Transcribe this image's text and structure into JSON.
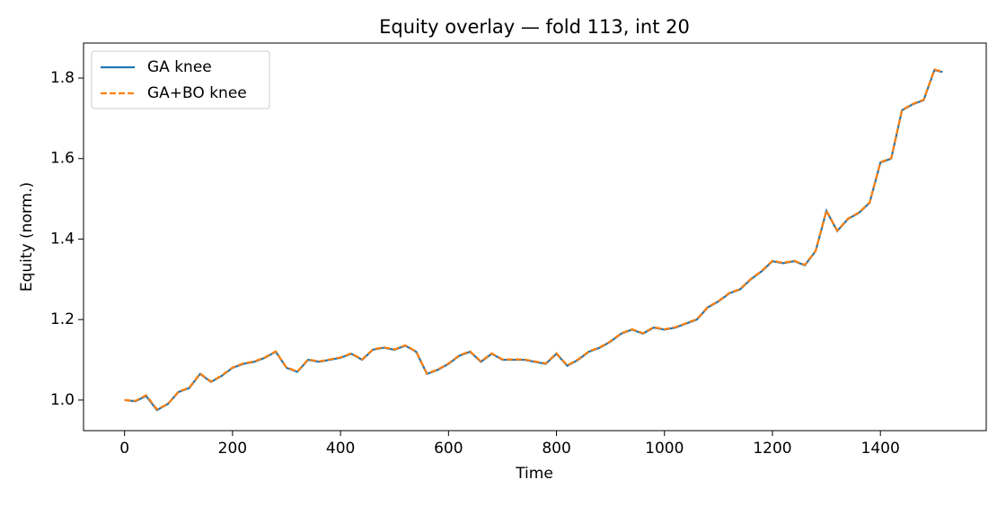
{
  "chart_data": {
    "type": "line",
    "title": "Equity overlay — fold 113, int 20",
    "x_label": "Time",
    "y_label": "Equity (norm.)",
    "x": [
      0,
      20,
      40,
      60,
      80,
      100,
      120,
      140,
      160,
      180,
      200,
      220,
      240,
      260,
      280,
      300,
      320,
      340,
      360,
      380,
      400,
      420,
      440,
      460,
      480,
      500,
      520,
      540,
      560,
      580,
      600,
      620,
      640,
      660,
      680,
      700,
      720,
      740,
      760,
      780,
      800,
      820,
      840,
      860,
      880,
      900,
      920,
      940,
      960,
      980,
      1000,
      1020,
      1040,
      1060,
      1080,
      1100,
      1120,
      1140,
      1160,
      1180,
      1200,
      1220,
      1240,
      1260,
      1280,
      1300,
      1320,
      1340,
      1360,
      1380,
      1400,
      1420,
      1440,
      1460,
      1480,
      1500,
      1515
    ],
    "series": [
      {
        "name": "GA knee",
        "color": "#1f77b4",
        "dash": false,
        "values": [
          1.0,
          0.997,
          1.01,
          0.975,
          0.99,
          1.02,
          1.03,
          1.065,
          1.045,
          1.06,
          1.08,
          1.09,
          1.095,
          1.105,
          1.12,
          1.08,
          1.07,
          1.1,
          1.095,
          1.1,
          1.105,
          1.115,
          1.1,
          1.125,
          1.13,
          1.125,
          1.135,
          1.12,
          1.065,
          1.075,
          1.09,
          1.11,
          1.12,
          1.095,
          1.115,
          1.1,
          1.1,
          1.1,
          1.095,
          1.09,
          1.115,
          1.085,
          1.1,
          1.12,
          1.13,
          1.145,
          1.165,
          1.175,
          1.165,
          1.18,
          1.175,
          1.18,
          1.19,
          1.2,
          1.23,
          1.245,
          1.265,
          1.275,
          1.3,
          1.32,
          1.345,
          1.34,
          1.345,
          1.335,
          1.37,
          1.47,
          1.42,
          1.45,
          1.465,
          1.49,
          1.59,
          1.6,
          1.72,
          1.735,
          1.745,
          1.82,
          1.815
        ]
      },
      {
        "name": "GA+BO knee",
        "color": "#ff7f0e",
        "dash": true,
        "values": [
          1.0,
          0.998,
          1.012,
          0.977,
          0.99,
          1.021,
          1.031,
          1.066,
          1.046,
          1.061,
          1.081,
          1.091,
          1.096,
          1.106,
          1.121,
          1.081,
          1.071,
          1.101,
          1.096,
          1.101,
          1.106,
          1.116,
          1.101,
          1.126,
          1.131,
          1.126,
          1.136,
          1.121,
          1.066,
          1.076,
          1.091,
          1.111,
          1.121,
          1.096,
          1.116,
          1.101,
          1.101,
          1.101,
          1.096,
          1.091,
          1.116,
          1.086,
          1.101,
          1.121,
          1.131,
          1.146,
          1.166,
          1.176,
          1.166,
          1.181,
          1.176,
          1.181,
          1.191,
          1.201,
          1.231,
          1.246,
          1.266,
          1.276,
          1.301,
          1.321,
          1.346,
          1.341,
          1.346,
          1.336,
          1.371,
          1.471,
          1.421,
          1.451,
          1.466,
          1.491,
          1.591,
          1.601,
          1.721,
          1.736,
          1.746,
          1.821,
          1.816
        ]
      }
    ],
    "xlim": [
      -76,
      1596
    ],
    "ylim": [
      0.924,
      1.887
    ],
    "xticks": [
      0,
      200,
      400,
      600,
      800,
      1000,
      1200,
      1400
    ],
    "yticks": [
      {
        "value": 1.0,
        "label": "1.0"
      },
      {
        "value": 1.2,
        "label": "1.2"
      },
      {
        "value": 1.4,
        "label": "1.4"
      },
      {
        "value": 1.6,
        "label": "1.6"
      },
      {
        "value": 1.8,
        "label": "1.8"
      }
    ],
    "grid": false,
    "legend": "upper-left"
  }
}
